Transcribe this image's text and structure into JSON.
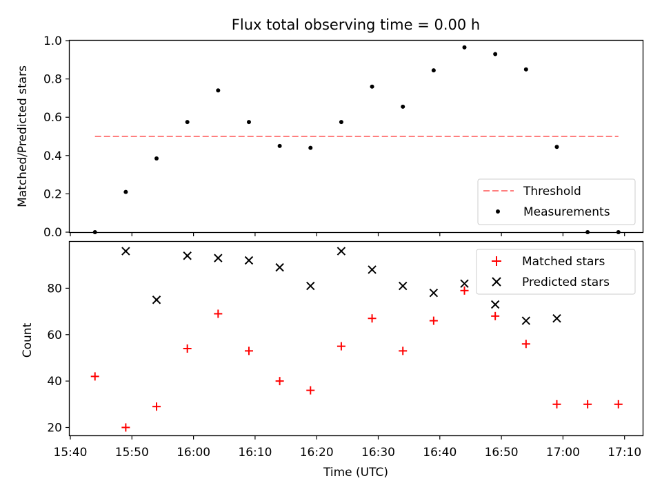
{
  "chart_data": [
    {
      "type": "scatter",
      "title": "Flux total observing time = 0.00 h",
      "xlabel": "",
      "ylabel": "Matched/Predicted stars",
      "ylim": [
        0,
        1.0
      ],
      "yticks": [
        "0.0",
        "0.2",
        "0.4",
        "0.6",
        "0.8",
        "1.0"
      ],
      "x": [
        "15:44",
        "15:49",
        "15:54",
        "15:59",
        "16:04",
        "16:09",
        "16:14",
        "16:19",
        "16:24",
        "16:29",
        "16:34",
        "16:39",
        "16:44",
        "16:49",
        "16:54",
        "16:59",
        "17:04",
        "17:09"
      ],
      "series": [
        {
          "name": "Measurements",
          "values": [
            0.0,
            0.21,
            0.385,
            0.575,
            0.74,
            0.575,
            0.45,
            0.44,
            0.575,
            0.76,
            0.655,
            0.845,
            0.965,
            0.93,
            0.85,
            0.445,
            0.0,
            0.0
          ],
          "color": "#000000"
        }
      ],
      "threshold": {
        "name": "Threshold",
        "value": 0.5,
        "x_start": "15:44",
        "x_end": "17:09",
        "color": "#ff7f7f"
      },
      "legend": "lower right",
      "grid": false
    },
    {
      "type": "scatter",
      "title": "",
      "xlabel": "Time (UTC)",
      "ylabel": "Count",
      "yticks": [
        "20",
        "40",
        "60",
        "80"
      ],
      "xticks": [
        "15:40",
        "15:50",
        "16:00",
        "16:10",
        "16:20",
        "16:30",
        "16:40",
        "16:50",
        "17:00",
        "17:10"
      ],
      "series": [
        {
          "name": "Matched stars",
          "marker": "+",
          "color": "#ff0000",
          "x": [
            "15:44",
            "15:49",
            "15:54",
            "15:59",
            "16:04",
            "16:09",
            "16:14",
            "16:19",
            "16:24",
            "16:29",
            "16:34",
            "16:39",
            "16:44",
            "16:49",
            "16:54",
            "16:59",
            "17:04",
            "17:09"
          ],
          "values": [
            42,
            20,
            29,
            54,
            69,
            53,
            40,
            36,
            55,
            67,
            53,
            66,
            79,
            68,
            56,
            30,
            30,
            30
          ]
        },
        {
          "name": "Predicted stars",
          "marker": "x",
          "color": "#000000",
          "x": [
            "15:49",
            "15:54",
            "15:59",
            "16:04",
            "16:09",
            "16:14",
            "16:19",
            "16:24",
            "16:29",
            "16:34",
            "16:39",
            "16:44",
            "16:49",
            "16:54",
            "16:59"
          ],
          "values": [
            96,
            75,
            94,
            93,
            92,
            89,
            81,
            96,
            88,
            81,
            78,
            82,
            73,
            66,
            67
          ]
        }
      ],
      "legend": "upper right",
      "grid": false
    }
  ]
}
